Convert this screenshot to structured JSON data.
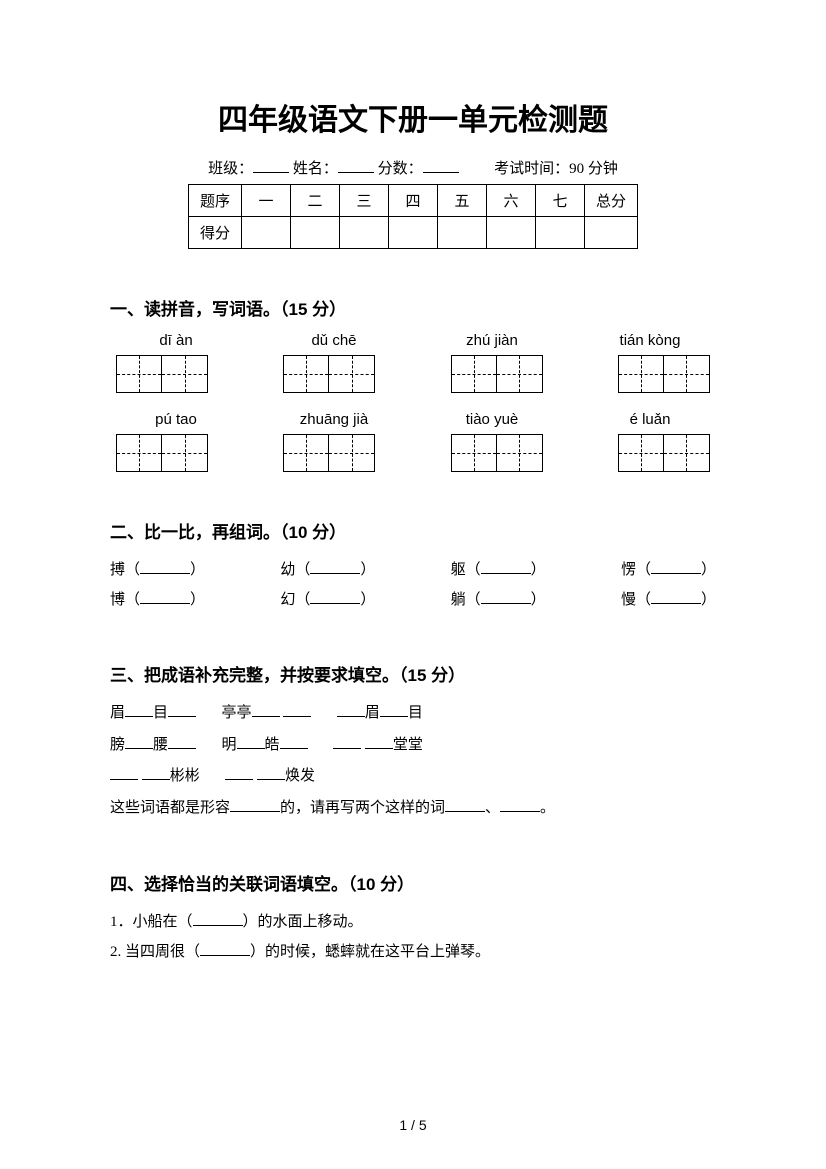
{
  "title": "四年级语文下册一单元检测题",
  "meta": {
    "class_label": "班级：",
    "name_label": "姓名：",
    "score_label": "分数：",
    "time_label": "考试时间：90 分钟"
  },
  "score_table": {
    "row1": [
      "题序",
      "一",
      "二",
      "三",
      "四",
      "五",
      "六",
      "七",
      "总分"
    ],
    "row2_label": "得分"
  },
  "s1": {
    "title": "一、读拼音，写词语。（15 分）",
    "row1": [
      "dī   àn",
      "dǔ chē",
      "zhú jiàn",
      "tián kòng"
    ],
    "row2": [
      "pú tao",
      "zhuāng jià",
      "tiào yuè",
      "é luǎn"
    ]
  },
  "s2": {
    "title": "二、比一比，再组词。（10 分）",
    "pairs": [
      [
        "搏（",
        "）",
        "幼（",
        "）",
        "躯（",
        "）",
        "愣（",
        "）"
      ],
      [
        "博（",
        "）",
        "幻（",
        "）",
        "躺（",
        "）",
        "慢（",
        "）"
      ]
    ]
  },
  "s3": {
    "title": "三、把成语补充完整，并按要求填空。（15 分）",
    "l1a": "眉",
    "l1b": "目",
    "l1c": "亭亭",
    "l1d": "眉",
    "l1e": "目",
    "l2a": "膀",
    "l2b": "腰",
    "l2c": "明",
    "l2d": "皓",
    "l2e": "堂堂",
    "l3a": "彬彬",
    "l3b": "焕发",
    "l4a": "这些词语都是形容",
    "l4b": "的，请再写两个这样的词",
    "l4c": "、",
    "l4d": "。"
  },
  "s4": {
    "title": "四、选择恰当的关联词语填空。（10 分）",
    "q1a": "1．小船在（",
    "q1b": "）的水面上移动。",
    "q2a": "2. 当四周很（",
    "q2b": "）的时候，蟋蟀就在这平台上弹琴。"
  },
  "footer": "1 / 5"
}
